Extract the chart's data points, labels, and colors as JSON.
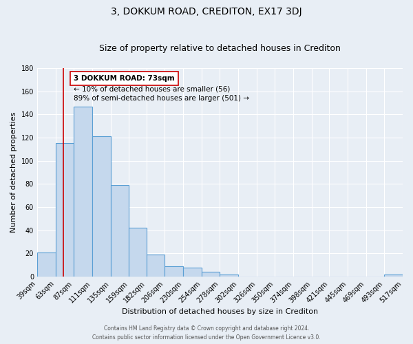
{
  "title": "3, DOKKUM ROAD, CREDITON, EX17 3DJ",
  "subtitle": "Size of property relative to detached houses in Crediton",
  "xlabel": "Distribution of detached houses by size in Crediton",
  "ylabel": "Number of detached properties",
  "bin_edges": [
    39,
    63,
    87,
    111,
    135,
    159,
    182,
    206,
    230,
    254,
    278,
    302,
    326,
    350,
    374,
    398,
    421,
    445,
    469,
    493,
    517
  ],
  "bar_heights": [
    21,
    115,
    147,
    121,
    79,
    42,
    19,
    9,
    8,
    4,
    2,
    0,
    0,
    0,
    0,
    0,
    0,
    0,
    0,
    2
  ],
  "bar_color": "#c5d8ed",
  "bar_edge_color": "#5a9fd4",
  "bar_edge_width": 0.8,
  "vline_x": 73,
  "vline_color": "#cc0000",
  "ylim": [
    0,
    180
  ],
  "yticks": [
    0,
    20,
    40,
    60,
    80,
    100,
    120,
    140,
    160,
    180
  ],
  "annotation_title": "3 DOKKUM ROAD: 73sqm",
  "annotation_line1": "← 10% of detached houses are smaller (56)",
  "annotation_line2": "89% of semi-detached houses are larger (501) →",
  "annotation_box_color": "#ffffff",
  "annotation_box_edge_color": "#cc0000",
  "footer1": "Contains HM Land Registry data © Crown copyright and database right 2024.",
  "footer2": "Contains public sector information licensed under the Open Government Licence v3.0.",
  "background_color": "#e8eef5",
  "plot_bg_color": "#e8eef5",
  "grid_color": "#ffffff",
  "title_fontsize": 10,
  "subtitle_fontsize": 9,
  "tick_label_fontsize": 7,
  "axis_label_fontsize": 8
}
